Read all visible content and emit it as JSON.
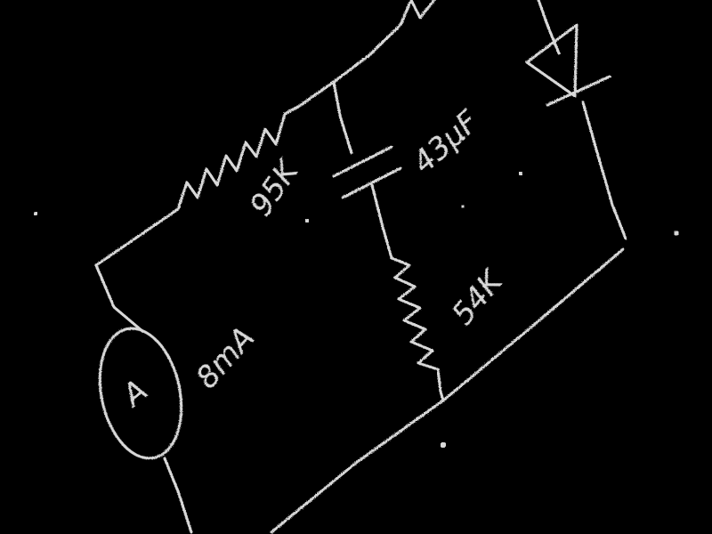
{
  "diagram": {
    "background_color": "#000000",
    "chalk_color": "#d8d8d8",
    "components": [
      {
        "type": "ammeter",
        "symbol": "A",
        "label": "8mA"
      },
      {
        "type": "resistor",
        "label": "95K"
      },
      {
        "type": "capacitor",
        "label": "43µF"
      },
      {
        "type": "resistor",
        "label": "54K"
      },
      {
        "type": "diode",
        "label": ""
      }
    ]
  }
}
